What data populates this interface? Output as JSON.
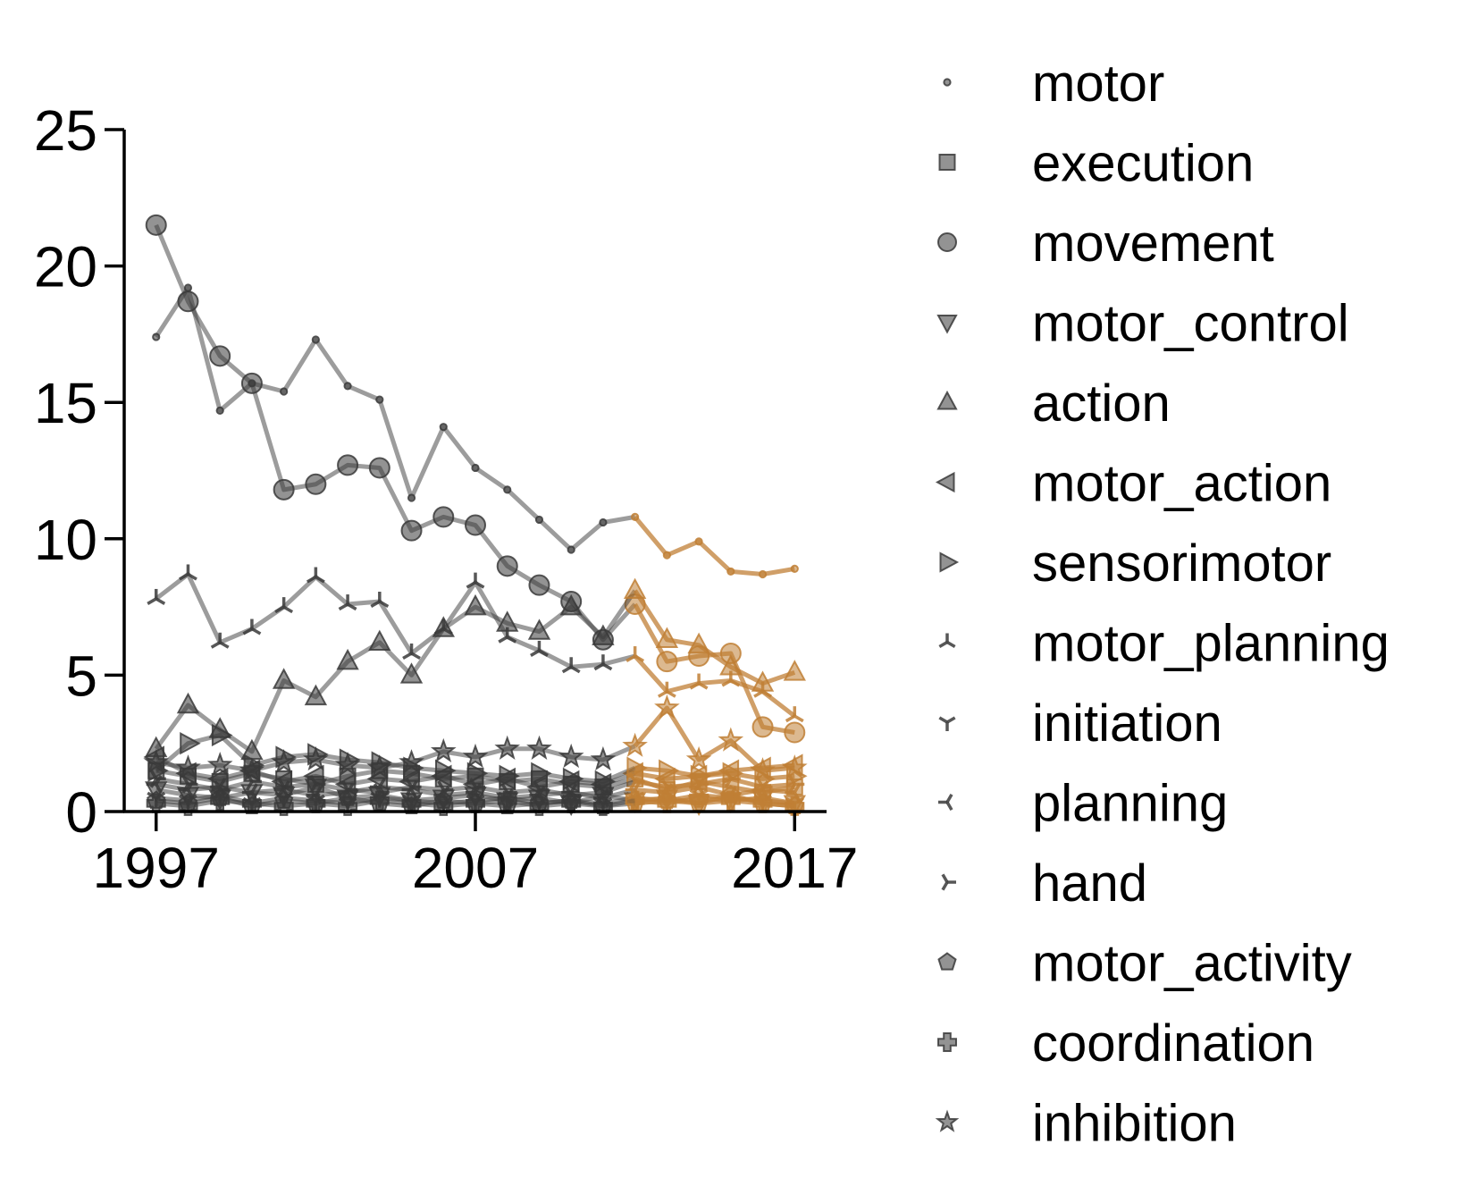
{
  "chart_data": {
    "type": "line",
    "title": "",
    "xlabel": "",
    "ylabel": "",
    "xlim": [
      1996,
      2018
    ],
    "ylim": [
      0,
      25
    ],
    "x_ticks": [
      "1997",
      "2007",
      "2017"
    ],
    "y_ticks": [
      "0",
      "5",
      "10",
      "15",
      "20",
      "25"
    ],
    "grid": false,
    "legend_position": "right",
    "colors": {
      "base": "#3a3a3a",
      "highlight": "#c07f35",
      "axis": "#000000"
    },
    "highlight_from_year": 2012,
    "x": [
      1997,
      1998,
      1999,
      2000,
      2001,
      2002,
      2003,
      2004,
      2005,
      2006,
      2007,
      2008,
      2009,
      2010,
      2011,
      2012,
      2013,
      2014,
      2015,
      2016,
      2017
    ],
    "series": [
      {
        "name": "motor",
        "marker": "point",
        "values": [
          17.4,
          19.2,
          14.7,
          15.7,
          15.4,
          17.3,
          15.6,
          15.1,
          11.5,
          14.1,
          12.6,
          11.8,
          10.7,
          9.6,
          10.6,
          10.8,
          9.4,
          9.9,
          8.8,
          8.7,
          8.9
        ]
      },
      {
        "name": "execution",
        "marker": "square",
        "values": [
          1.5,
          1.3,
          1.1,
          1.4,
          1.2,
          1.0,
          1.3,
          1.5,
          1.4,
          1.2,
          1.3,
          1.1,
          1.2,
          1.0,
          0.9,
          1.2,
          0.8,
          1.1,
          0.9,
          0.7,
          0.9
        ]
      },
      {
        "name": "movement",
        "marker": "circle",
        "values": [
          21.5,
          18.7,
          16.7,
          15.7,
          11.8,
          12.0,
          12.7,
          12.6,
          10.3,
          10.8,
          10.5,
          9.0,
          8.3,
          7.7,
          6.3,
          7.6,
          5.5,
          5.7,
          5.8,
          3.1,
          2.9
        ]
      },
      {
        "name": "motor_control",
        "marker": "triangle-down",
        "values": [
          0.8,
          0.6,
          0.5,
          0.7,
          0.6,
          0.9,
          0.5,
          0.6,
          0.4,
          0.5,
          0.6,
          0.4,
          0.5,
          0.3,
          0.6,
          0.4,
          0.5,
          0.3,
          0.4,
          0.5,
          0.3
        ]
      },
      {
        "name": "action",
        "marker": "triangle-up",
        "values": [
          2.3,
          3.9,
          3.0,
          2.2,
          4.8,
          4.2,
          5.5,
          6.2,
          5.0,
          6.7,
          7.5,
          6.9,
          6.6,
          7.5,
          6.4,
          8.1,
          6.3,
          6.1,
          5.3,
          4.7,
          5.1
        ]
      },
      {
        "name": "motor_action",
        "marker": "triangle-left",
        "values": [
          2.0,
          1.4,
          1.2,
          1.5,
          1.1,
          1.3,
          1.0,
          1.2,
          1.1,
          1.3,
          1.0,
          1.2,
          0.9,
          1.1,
          1.0,
          1.4,
          1.2,
          1.3,
          1.5,
          1.6,
          1.7
        ]
      },
      {
        "name": "sensorimotor",
        "marker": "triangle-right",
        "values": [
          1.5,
          2.5,
          2.8,
          1.7,
          2.0,
          2.1,
          1.9,
          1.8,
          1.6,
          1.5,
          1.4,
          1.3,
          1.4,
          1.2,
          1.1,
          1.6,
          1.5,
          1.3,
          1.4,
          1.2,
          1.3
        ]
      },
      {
        "name": "motor_planning",
        "marker": "tri-down",
        "values": [
          7.8,
          8.7,
          6.2,
          6.7,
          7.5,
          8.6,
          7.6,
          7.7,
          5.8,
          6.7,
          8.4,
          6.4,
          5.9,
          5.3,
          5.4,
          5.7,
          4.4,
          4.7,
          4.8,
          4.4,
          3.5
        ]
      },
      {
        "name": "initiation",
        "marker": "tri-up",
        "values": [
          0.5,
          0.4,
          0.6,
          0.3,
          0.5,
          0.4,
          0.3,
          0.5,
          0.4,
          0.3,
          0.4,
          0.5,
          0.3,
          0.4,
          0.3,
          0.5,
          0.4,
          0.6,
          0.5,
          0.4,
          0.3
        ]
      },
      {
        "name": "planning",
        "marker": "tri-left",
        "values": [
          1.0,
          0.8,
          0.9,
          0.7,
          0.8,
          0.6,
          0.7,
          0.9,
          0.8,
          0.6,
          0.7,
          0.5,
          0.6,
          0.7,
          0.5,
          0.8,
          0.7,
          0.9,
          0.6,
          0.8,
          0.7
        ]
      },
      {
        "name": "hand",
        "marker": "tri-right",
        "values": [
          1.2,
          1.0,
          0.8,
          1.1,
          0.9,
          1.0,
          0.8,
          0.7,
          0.9,
          0.8,
          0.9,
          0.7,
          0.8,
          0.6,
          0.7,
          1.1,
          0.9,
          1.0,
          1.2,
          0.9,
          1.0
        ]
      },
      {
        "name": "motor_activity",
        "marker": "pentagon",
        "values": [
          0.4,
          0.3,
          0.5,
          0.2,
          0.4,
          0.3,
          0.5,
          0.3,
          0.2,
          0.4,
          0.3,
          0.2,
          0.3,
          0.4,
          0.2,
          0.3,
          0.4,
          0.3,
          0.6,
          0.3,
          0.2
        ]
      },
      {
        "name": "coordination",
        "marker": "plus",
        "values": [
          0.3,
          0.2,
          0.4,
          0.3,
          0.2,
          0.3,
          0.2,
          0.4,
          0.3,
          0.2,
          0.3,
          0.4,
          0.2,
          0.3,
          0.2,
          0.4,
          0.3,
          0.5,
          0.4,
          0.3,
          0.2
        ]
      },
      {
        "name": "inhibition",
        "marker": "star",
        "values": [
          1.8,
          1.6,
          1.7,
          1.5,
          1.8,
          1.9,
          1.7,
          1.6,
          1.8,
          2.2,
          2.0,
          2.3,
          2.3,
          2.0,
          1.9,
          2.4,
          3.8,
          1.9,
          2.6,
          1.5,
          1.6
        ]
      }
    ]
  }
}
